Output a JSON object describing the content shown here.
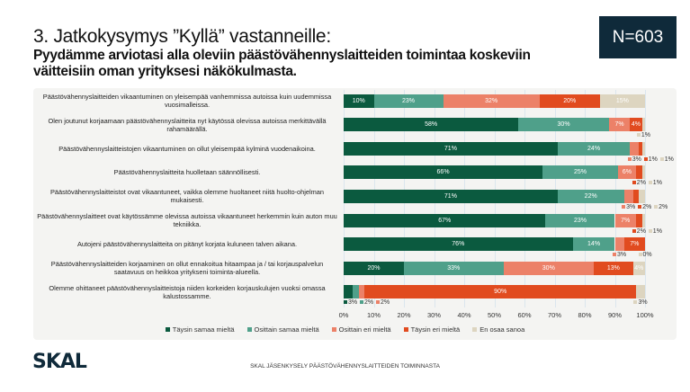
{
  "header": {
    "title": "3. Jatkokysymys ”Kyllä” vastanneille:",
    "subtitle": "Pyydämme arviotasi alla oleviin päästövähennyslaitteiden toimintaa koskeviin väitteisiin oman yrityksesi näkökulmasta.",
    "sample_size": "N=603"
  },
  "footer": {
    "logo": "SKAL",
    "text": "SKAL JÄSENKYSELY PÄÄSTÖVÄHENNYSLAITTEIDEN TOIMINNASTA"
  },
  "chart_data": {
    "type": "bar",
    "orientation": "horizontal",
    "stacked": true,
    "xlim": [
      0,
      100
    ],
    "x_ticks": [
      "0%",
      "10%",
      "20%",
      "30%",
      "40%",
      "50%",
      "60%",
      "70%",
      "80%",
      "90%",
      "100%"
    ],
    "grid": true,
    "legend_position": "bottom",
    "categories": [
      "Päästövähennyslaitteiden vikaantuminen on yleisempää vanhemmissa autoissa kuin uudemmissa vuosimalleissa.",
      "Olen joutunut korjaamaan päästövähennyslaitteita nyt käytössä olevissa autoissa merkittävällä rahamäärällä.",
      "Päästövähennyslaitteistojen vikaantuminen on ollut yleisempää kylminä vuodenaikoina.",
      "Päästövähennyslaitteita huolletaan säännöllisesti.",
      "Päästövähennyslaitteistot ovat vikaantuneet, vaikka olemme huoltaneet niitä huolto-ohjelman mukaisesti.",
      "Päästövähennyslaitteet ovat käytössämme olevissa autoissa vikaantuneet herkemmin kuin auton muu tekniikka.",
      "Autojeni päästövähennyslaitteita on pitänyt korjata kuluneen talven aikana.",
      "Päästövähennyslaitteiden korjaaminen on ollut ennakoitua hitaampaa ja / tai korjauspalvelun saatavuus on heikkoa yritykseni toiminta-alueella.",
      "Olemme ohittaneet päästövähennyslaitteistoja niiden korkeiden korjauskulujen vuoksi omassa kalustossamme."
    ],
    "series": [
      {
        "name": "Täysin samaa mieltä",
        "color": "#0b5a3f",
        "values": [
          10,
          58,
          71,
          66,
          71,
          67,
          76,
          20,
          3
        ]
      },
      {
        "name": "Osittain samaa mieltä",
        "color": "#4fa08a",
        "values": [
          23,
          30,
          24,
          25,
          22,
          23,
          14,
          33,
          2
        ]
      },
      {
        "name": "Osittain eri mieltä",
        "color": "#ec8168",
        "values": [
          32,
          7,
          3,
          6,
          3,
          7,
          3,
          30,
          2
        ]
      },
      {
        "name": "Täysin eri mieltä",
        "color": "#e14b1f",
        "values": [
          20,
          4,
          1,
          2,
          2,
          2,
          7,
          13,
          90
        ]
      },
      {
        "name": "En osaa sanoa",
        "color": "#ddd5c0",
        "values": [
          15,
          1,
          1,
          1,
          2,
          1,
          0,
          4,
          3
        ]
      }
    ]
  }
}
